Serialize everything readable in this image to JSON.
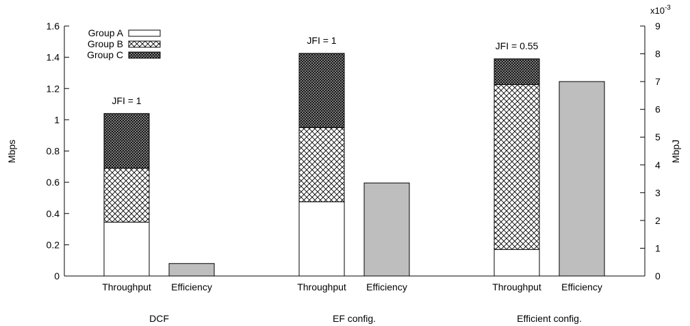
{
  "chart_data": {
    "type": "bar",
    "stacked": true,
    "groups": [
      "DCF",
      "EF config.",
      "Efficient config."
    ],
    "bar_labels": [
      "Throughput",
      "Efficiency"
    ],
    "throughput": {
      "series": [
        {
          "name": "Group A",
          "values": [
            0.345,
            0.475,
            0.17
          ]
        },
        {
          "name": "Group B",
          "values": [
            0.345,
            0.475,
            1.055
          ]
        },
        {
          "name": "Group C",
          "values": [
            0.35,
            0.475,
            0.165
          ]
        }
      ],
      "annotations": [
        "JFI = 1",
        "JFI = 1",
        "JFI = 0.55"
      ]
    },
    "efficiency": {
      "values": [
        0.45,
        3.35,
        7.0
      ],
      "color": "#bebebe"
    },
    "ylabel_left": "Mbps",
    "ylabel_right": "MbpJ",
    "right_axis_multiplier": "x10",
    "right_axis_exponent": "-3",
    "ylim_left": [
      0,
      1.6
    ],
    "ylim_right": [
      0,
      9
    ],
    "yticks_left": [
      "0",
      "0.2",
      "0.4",
      "0.6",
      "0.8",
      "1",
      "1.2",
      "1.4",
      "1.6"
    ],
    "yticks_right": [
      "0",
      "1",
      "2",
      "3",
      "4",
      "5",
      "6",
      "7",
      "8",
      "9"
    ],
    "legend_position": "top-left",
    "grid": false
  }
}
